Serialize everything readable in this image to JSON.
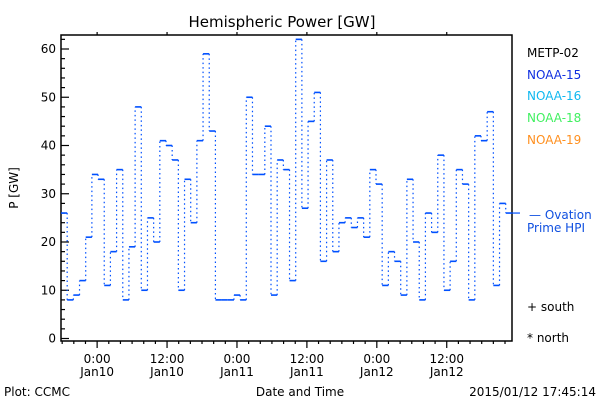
{
  "chart_data": {
    "type": "line",
    "title": "Hemispheric Power [GW]",
    "ylabel": "P [GW]",
    "xlabel": "Date and Time",
    "ylim": [
      0,
      63
    ],
    "yticks": [
      0,
      10,
      20,
      30,
      40,
      50,
      60
    ],
    "xlim_hours_from_jan10": [
      -6.2,
      71.2
    ],
    "xticks": [
      {
        "hour": 0,
        "line1": "0:00",
        "line2": "Jan10"
      },
      {
        "hour": 12,
        "line1": "12:00",
        "line2": "Jan10"
      },
      {
        "hour": 24,
        "line1": "0:00",
        "line2": "Jan11"
      },
      {
        "hour": 36,
        "line1": "12:00",
        "line2": "Jan11"
      },
      {
        "hour": 48,
        "line1": "0:00",
        "line2": "Jan12"
      },
      {
        "hour": 60,
        "line1": "12:00",
        "line2": "Jan12"
      }
    ],
    "series": [
      {
        "name": "Ovation Prime HPI",
        "color": "#0050ff",
        "style": "step",
        "start_hour": -6.2,
        "step_hours": 1.06,
        "values": [
          26,
          8,
          9,
          12,
          21,
          34,
          33,
          11,
          18,
          35,
          8,
          19,
          48,
          10,
          25,
          20,
          41,
          40,
          37,
          10,
          33,
          24,
          41,
          59,
          43,
          8,
          8,
          8,
          9,
          8,
          50,
          34,
          34,
          44,
          9,
          37,
          35,
          12,
          62,
          27,
          45,
          51,
          16,
          37,
          18,
          24,
          25,
          23,
          25,
          21,
          35,
          32,
          11,
          18,
          16,
          9,
          33,
          20,
          8,
          26,
          22,
          38,
          10,
          16,
          35,
          32,
          8,
          42,
          41,
          47,
          11,
          28,
          26
        ]
      }
    ],
    "legend": {
      "placement": "right",
      "satellites": [
        {
          "label": "METP-02",
          "color": "#000000"
        },
        {
          "label": "NOAA-15",
          "color": "#1030e0"
        },
        {
          "label": "NOAA-16",
          "color": "#10b8f0"
        },
        {
          "label": "NOAA-18",
          "color": "#40f060"
        },
        {
          "label": "NOAA-19",
          "color": "#ff9020"
        }
      ],
      "hpi_line1": "— Ovation",
      "hpi_line2": "Prime HPI",
      "hpi_color": "#1050e0",
      "south": "+ south",
      "north": "* north"
    }
  },
  "footer": {
    "plot_credit": "Plot: CCMC",
    "timestamp": "2015/01/12 17:45:14"
  }
}
